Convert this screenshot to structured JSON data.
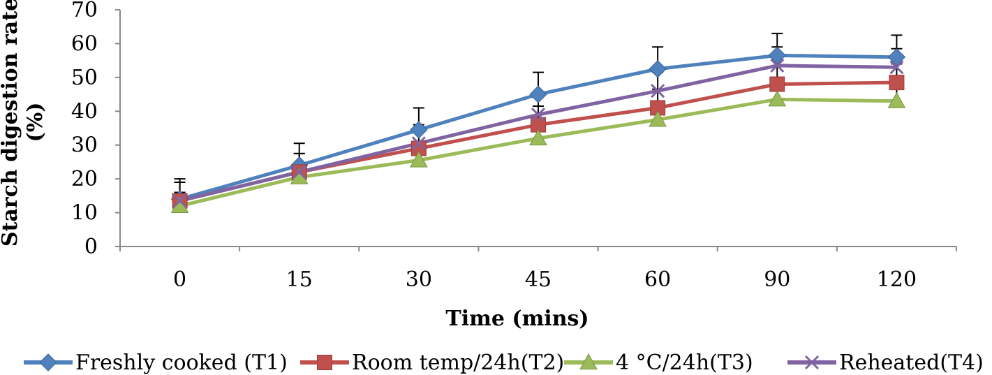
{
  "chart_data": {
    "type": "line",
    "title": "",
    "xlabel": "Time (mins)",
    "ylabel_line1": "Starch digestion rate",
    "ylabel_line2": "(%)",
    "categories": [
      "0",
      "15",
      "30",
      "45",
      "60",
      "90",
      "120"
    ],
    "ylim": [
      0,
      70
    ],
    "yticks": [
      0,
      10,
      20,
      30,
      40,
      50,
      60,
      70
    ],
    "ytick_labels": [
      "0",
      "10",
      "20",
      "30",
      "40",
      "50",
      "60",
      "70"
    ],
    "grid": false,
    "legend_position": "bottom",
    "series": [
      {
        "name": "Freshly cooked (T1)",
        "color": "#4f81bd",
        "marker": "diamond",
        "values": [
          14,
          24,
          34.5,
          45,
          52.5,
          56.5,
          56
        ],
        "errors": [
          6,
          6.5,
          6.5,
          6.5,
          6.5,
          6.5,
          6.5
        ]
      },
      {
        "name": "Room temp/24h(T2)",
        "color": "#c0504d",
        "marker": "square",
        "values": [
          13.5,
          22,
          29,
          36,
          41,
          48,
          48.5
        ],
        "errors": [
          5.5,
          5.5,
          5.5,
          5.5,
          5.5,
          5.5,
          5.5
        ]
      },
      {
        "name": "4 °C/24h(T3)",
        "color": "#9bbb59",
        "marker": "triangle",
        "values": [
          12,
          20.5,
          25.5,
          32,
          37.5,
          43.5,
          43
        ],
        "errors": [
          4,
          4,
          4,
          4,
          4,
          4,
          4
        ]
      },
      {
        "name": "Reheated(T4)",
        "color": "#8064a2",
        "marker": "x",
        "values": [
          13.5,
          22,
          30.5,
          39,
          46,
          53.5,
          53
        ],
        "errors": [
          5.5,
          5.5,
          5.5,
          5.5,
          5.5,
          5.5,
          5.5
        ]
      }
    ]
  }
}
